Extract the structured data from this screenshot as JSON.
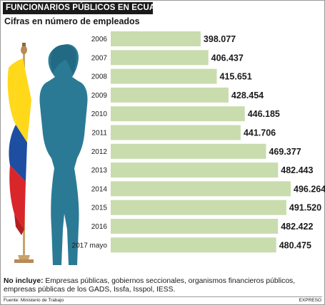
{
  "header": {
    "title": "FUNCIONARIOS PÚBLICOS EN ECUADOR",
    "subtitle": "Cifras en número de empleados"
  },
  "note": {
    "label": "No incluye:",
    "text": " Empresas públicas, gobiernos seccionales, organismos financieros públicos, empresas públicas de los GADS, Issfa, Isspol, IESS."
  },
  "footer": {
    "source": "Fuente: Ministerio de Trabajo",
    "credit": "EXPRESO"
  },
  "colors": {
    "bar": "#c9dcae",
    "silhouette": "#2b7a95",
    "flag_yellow": "#ffd81a",
    "flag_blue": "#1d4ea1",
    "flag_red": "#d9262b",
    "pole": "#c9a36a"
  },
  "icons": [
    "woman-silhouette-icon",
    "ecuador-flag-icon"
  ],
  "chart_data": {
    "type": "bar",
    "orientation": "horizontal",
    "title": "Cifras en número de empleados",
    "categories": [
      "2006",
      "2007",
      "2008",
      "2009",
      "2010",
      "2011",
      "2012",
      "2013",
      "2014",
      "2015",
      "2016",
      "2017 mayo"
    ],
    "values": [
      398077,
      406437,
      415651,
      428454,
      446185,
      441706,
      469377,
      482443,
      496264,
      491520,
      482422,
      480475
    ],
    "value_labels": [
      "398.077",
      "406.437",
      "415.651",
      "428.454",
      "446.185",
      "441.706",
      "469.377",
      "482.443",
      "496.264",
      "491.520",
      "482.422",
      "480.475"
    ],
    "grid": false,
    "legend": "none"
  }
}
